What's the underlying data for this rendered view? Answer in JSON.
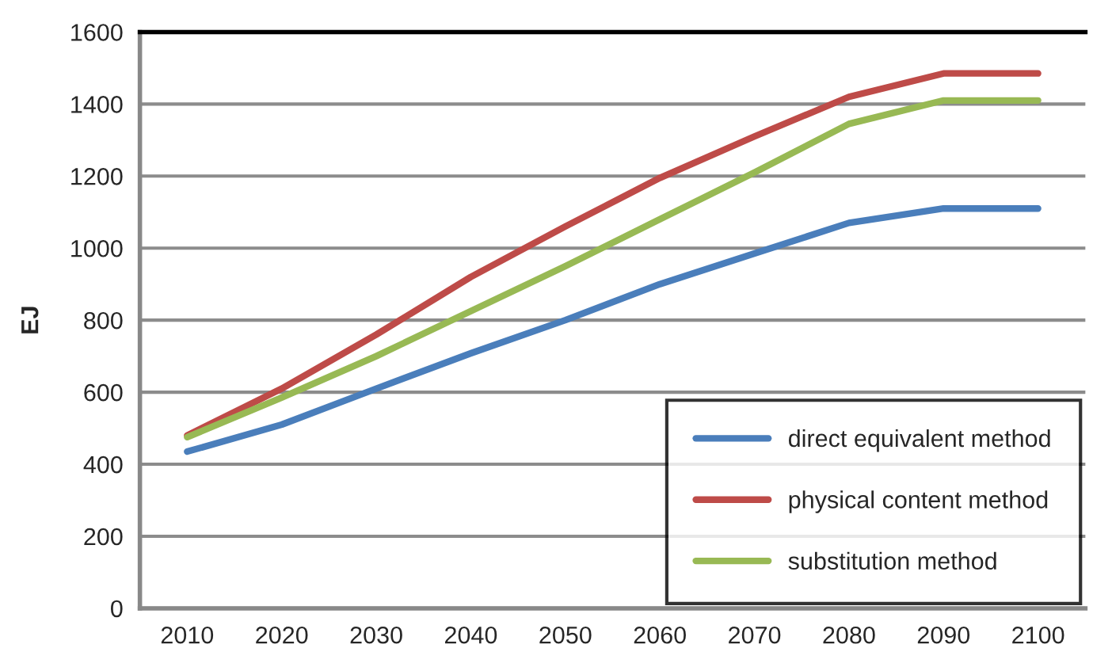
{
  "chart_data": {
    "type": "line",
    "ylabel": "EJ",
    "categories": [
      "2010",
      "2020",
      "2030",
      "2040",
      "2050",
      "2060",
      "2070",
      "2080",
      "2090",
      "2100"
    ],
    "series": [
      {
        "name": "direct equivalent method",
        "color": "#4a7ebb",
        "values": [
          435,
          510,
          610,
          708,
          800,
          900,
          985,
          1070,
          1110,
          1110
        ]
      },
      {
        "name": "physical content method",
        "color": "#be4b48",
        "values": [
          480,
          610,
          760,
          920,
          1060,
          1195,
          1310,
          1420,
          1485,
          1485
        ]
      },
      {
        "name": "substitution method",
        "color": "#98b954",
        "values": [
          475,
          585,
          700,
          825,
          950,
          1080,
          1210,
          1345,
          1410,
          1410
        ]
      }
    ],
    "ylim": [
      0,
      1600
    ],
    "yticks": [
      0,
      200,
      400,
      600,
      800,
      1000,
      1200,
      1400,
      1600
    ],
    "grid": "y",
    "legend": "bottom right",
    "marker": "none",
    "line_style": "solid"
  }
}
